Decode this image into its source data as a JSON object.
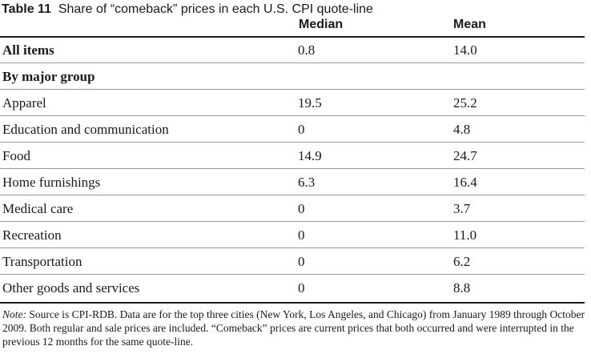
{
  "table": {
    "title_label": "Table 11",
    "title_text": "Share of “comeback” prices in each U.S. CPI quote-line",
    "columns": [
      "Median",
      "Mean"
    ],
    "all_items": {
      "label": "All items",
      "median": "0.8",
      "mean": "14.0"
    },
    "group_heading": "By major group",
    "rows": [
      {
        "label": "Apparel",
        "median": "19.5",
        "mean": "25.2"
      },
      {
        "label": "Education and communication",
        "median": "0",
        "mean": "4.8"
      },
      {
        "label": "Food",
        "median": "14.9",
        "mean": "24.7"
      },
      {
        "label": "Home furnishings",
        "median": "6.3",
        "mean": "16.4"
      },
      {
        "label": "Medical care",
        "median": "0",
        "mean": "3.7"
      },
      {
        "label": "Recreation",
        "median": "0",
        "mean": "11.0"
      },
      {
        "label": "Transportation",
        "median": "0",
        "mean": "6.2"
      },
      {
        "label": "Other goods and services",
        "median": "0",
        "mean": "8.8"
      }
    ]
  },
  "note": {
    "prefix": "Note:",
    "text": "Source is CPI-RDB. Data are for the top three cities (New York, Los Angeles, and Chicago) from January 1989 through October 2009. Both regular and sale prices are included. “Comeback” prices are current prices that both occurred and were interrupted in the previous 12 months for the same quote-line."
  }
}
